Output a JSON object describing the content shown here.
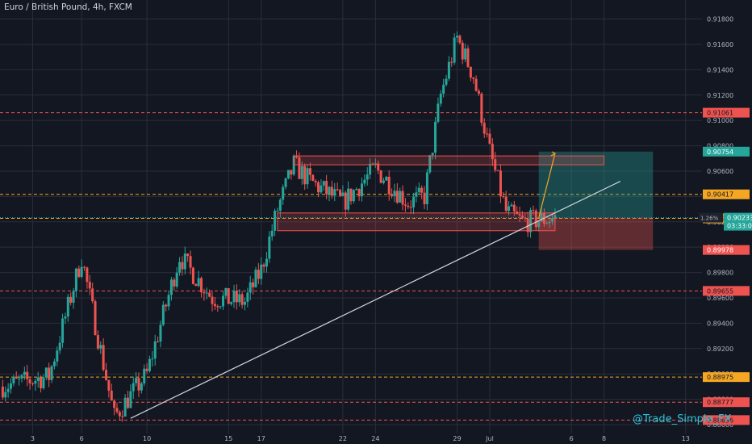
{
  "header": {
    "symbol_title": "Euro / British Pound, 4h, FXCM"
  },
  "watermark": "@Trade_Simple_FX",
  "colors": {
    "background": "#131722",
    "grid": "#2a2e39",
    "up_candle": "#26a69a",
    "down_candle": "#ef5350",
    "axis_text": "#b2b5be",
    "resistance_line": "#ef5350",
    "support_line": "#f5a623",
    "zone_fill": "rgba(239,83,80,0.22)",
    "zone_border": "#ef5350",
    "target_zone": "rgba(38,166,154,0.35)",
    "stop_zone": "rgba(239,83,80,0.35)",
    "trendline": "#d1d4dc",
    "projection_arrow": "#f5a623"
  },
  "chart_data": {
    "type": "candlestick",
    "instrument": "Euro / British Pound",
    "interval": "4h",
    "source": "FXCM",
    "ylim": [
      0.8853,
      0.9195
    ],
    "x_domain": [
      "2019-06-01",
      "2019-07-14"
    ],
    "x_ticks": [
      {
        "label": "3",
        "date": "2019-06-03"
      },
      {
        "label": "6",
        "date": "2019-06-06"
      },
      {
        "label": "10",
        "date": "2019-06-10"
      },
      {
        "label": "15",
        "date": "2019-06-15"
      },
      {
        "label": "17",
        "date": "2019-06-17"
      },
      {
        "label": "22",
        "date": "2019-06-22"
      },
      {
        "label": "24",
        "date": "2019-06-24"
      },
      {
        "label": "29",
        "date": "2019-06-29"
      },
      {
        "label": "Jul",
        "date": "2019-07-01"
      },
      {
        "label": "6",
        "date": "2019-07-06"
      },
      {
        "label": "8",
        "date": "2019-07-08"
      },
      {
        "label": "13",
        "date": "2019-07-13"
      }
    ],
    "y_ticks": [
      "0.91800",
      "0.91600",
      "0.91400",
      "0.91200",
      "0.91000",
      "0.90800",
      "0.90600",
      "0.90400",
      "0.90200",
      "0.90000",
      "0.89800",
      "0.89600",
      "0.89400",
      "0.89200",
      "0.89000",
      "0.88800",
      "0.88600"
    ],
    "series_anchor_dates": [
      "2019-06-01",
      "2019-06-04",
      "2019-06-06",
      "2019-06-08",
      "2019-06-10",
      "2019-06-12",
      "2019-06-14",
      "2019-06-16",
      "2019-06-17",
      "2019-06-18",
      "2019-06-19",
      "2019-06-20",
      "2019-06-22",
      "2019-06-24",
      "2019-06-26",
      "2019-06-27",
      "2019-06-28",
      "2019-06-29",
      "2019-06-30",
      "2019-07-01",
      "2019-07-02",
      "2019-07-03",
      "2019-07-05"
    ],
    "series_anchor_close": [
      0.889,
      0.8898,
      0.8992,
      0.8866,
      0.89,
      0.8993,
      0.896,
      0.8957,
      0.8982,
      0.903,
      0.9065,
      0.9052,
      0.9035,
      0.9062,
      0.9035,
      0.904,
      0.912,
      0.9165,
      0.9135,
      0.9075,
      0.9028,
      0.902,
      0.9023
    ],
    "level_lines": [
      {
        "value": 0.91061,
        "label": "0.91061",
        "kind": "resistance"
      },
      {
        "value": 0.90417,
        "label": "0.90417",
        "kind": "support"
      },
      {
        "value": 0.90227,
        "label": "0.90227",
        "kind": "support"
      },
      {
        "value": 0.89655,
        "label": "0.89655",
        "kind": "resistance"
      },
      {
        "value": 0.88975,
        "label": "0.88975",
        "kind": "support"
      },
      {
        "value": 0.88777,
        "label": "0.88777",
        "kind": "resistance"
      },
      {
        "value": 0.88636,
        "label": "0.88636",
        "kind": "resistance"
      }
    ],
    "price_labels": [
      {
        "value": 0.90754,
        "label": "0.90754",
        "kind": "target"
      },
      {
        "value": 0.89978,
        "label": "0.89978",
        "kind": "stop"
      }
    ],
    "current_price": {
      "value": 0.90233,
      "label": "0.90233",
      "change": "1.26%",
      "countdown": "03:33:01"
    },
    "zones": [
      {
        "from": "2019-06-19",
        "to": "2019-07-08",
        "low": 0.9065,
        "high": 0.9072
      },
      {
        "from": "2019-06-18",
        "to": "2019-07-05",
        "low": 0.9013,
        "high": 0.9027
      }
    ],
    "position": {
      "entry": 0.90233,
      "target": 0.90754,
      "stop": 0.89978,
      "from": "2019-07-04",
      "to": "2019-07-11"
    },
    "trendline": [
      {
        "date": "2019-06-09",
        "value": 0.8865
      },
      {
        "date": "2019-07-09",
        "value": 0.9052
      }
    ],
    "projection_arrow": [
      {
        "date": "2019-07-04",
        "value": 0.9023
      },
      {
        "date": "2019-07-05",
        "value": 0.9074
      }
    ],
    "grid": true
  }
}
